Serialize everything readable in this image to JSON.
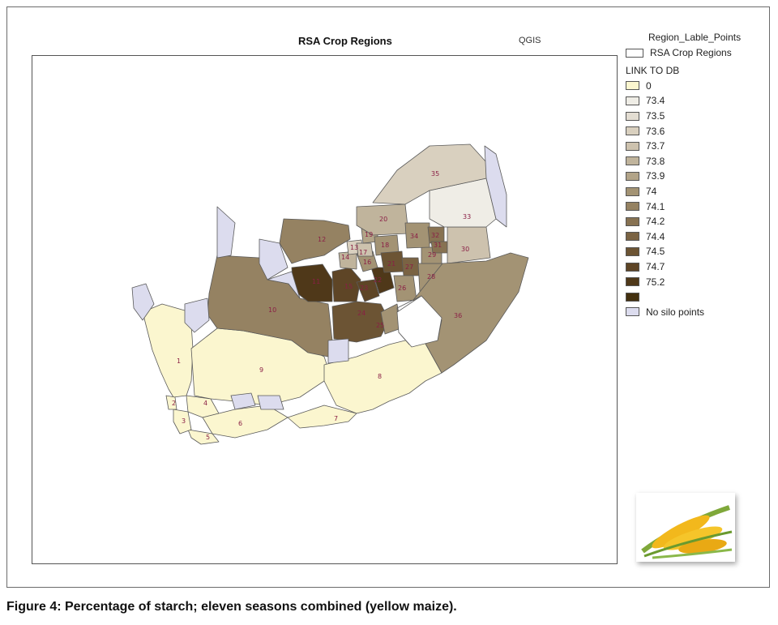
{
  "map": {
    "title": "RSA Crop Regions",
    "software": "QGIS"
  },
  "legend": {
    "label_layer": "Region_Lable_Points",
    "outline_layer": "RSA Crop Regions",
    "field_title": "LINK TO DB",
    "classes": [
      {
        "label": "0",
        "color": "#fbf6cf"
      },
      {
        "label": "73.4",
        "color": "#efede6"
      },
      {
        "label": "73.5",
        "color": "#e3ddd2"
      },
      {
        "label": "73.6",
        "color": "#d9d0bf"
      },
      {
        "label": "73.7",
        "color": "#cdc2ae"
      },
      {
        "label": "73.8",
        "color": "#c0b49c"
      },
      {
        "label": "73.9",
        "color": "#b2a488"
      },
      {
        "label": "74",
        "color": "#a39374"
      },
      {
        "label": "74.1",
        "color": "#958262"
      },
      {
        "label": "74.2",
        "color": "#877252"
      },
      {
        "label": "74.4",
        "color": "#7a6343"
      },
      {
        "label": "74.5",
        "color": "#6c5434"
      },
      {
        "label": "74.7",
        "color": "#5e4526"
      },
      {
        "label": "75.2",
        "color": "#4f3819"
      },
      {
        "label": "",
        "color": "#43300f"
      }
    ],
    "no_silo": {
      "label": "No silo points",
      "color": "#dcdcee"
    }
  },
  "region_labels": [
    "1",
    "2",
    "3",
    "4",
    "5",
    "6",
    "7",
    "8",
    "9",
    "10",
    "11",
    "12",
    "13",
    "14",
    "15",
    "16",
    "17",
    "18",
    "19",
    "20",
    "21",
    "22",
    "23",
    "24",
    "25",
    "26",
    "27",
    "28",
    "29",
    "30",
    "31",
    "32",
    "33",
    "34",
    "35",
    "36"
  ],
  "caption": "Figure 4: Percentage of starch; eleven seasons combined (yellow maize)."
}
